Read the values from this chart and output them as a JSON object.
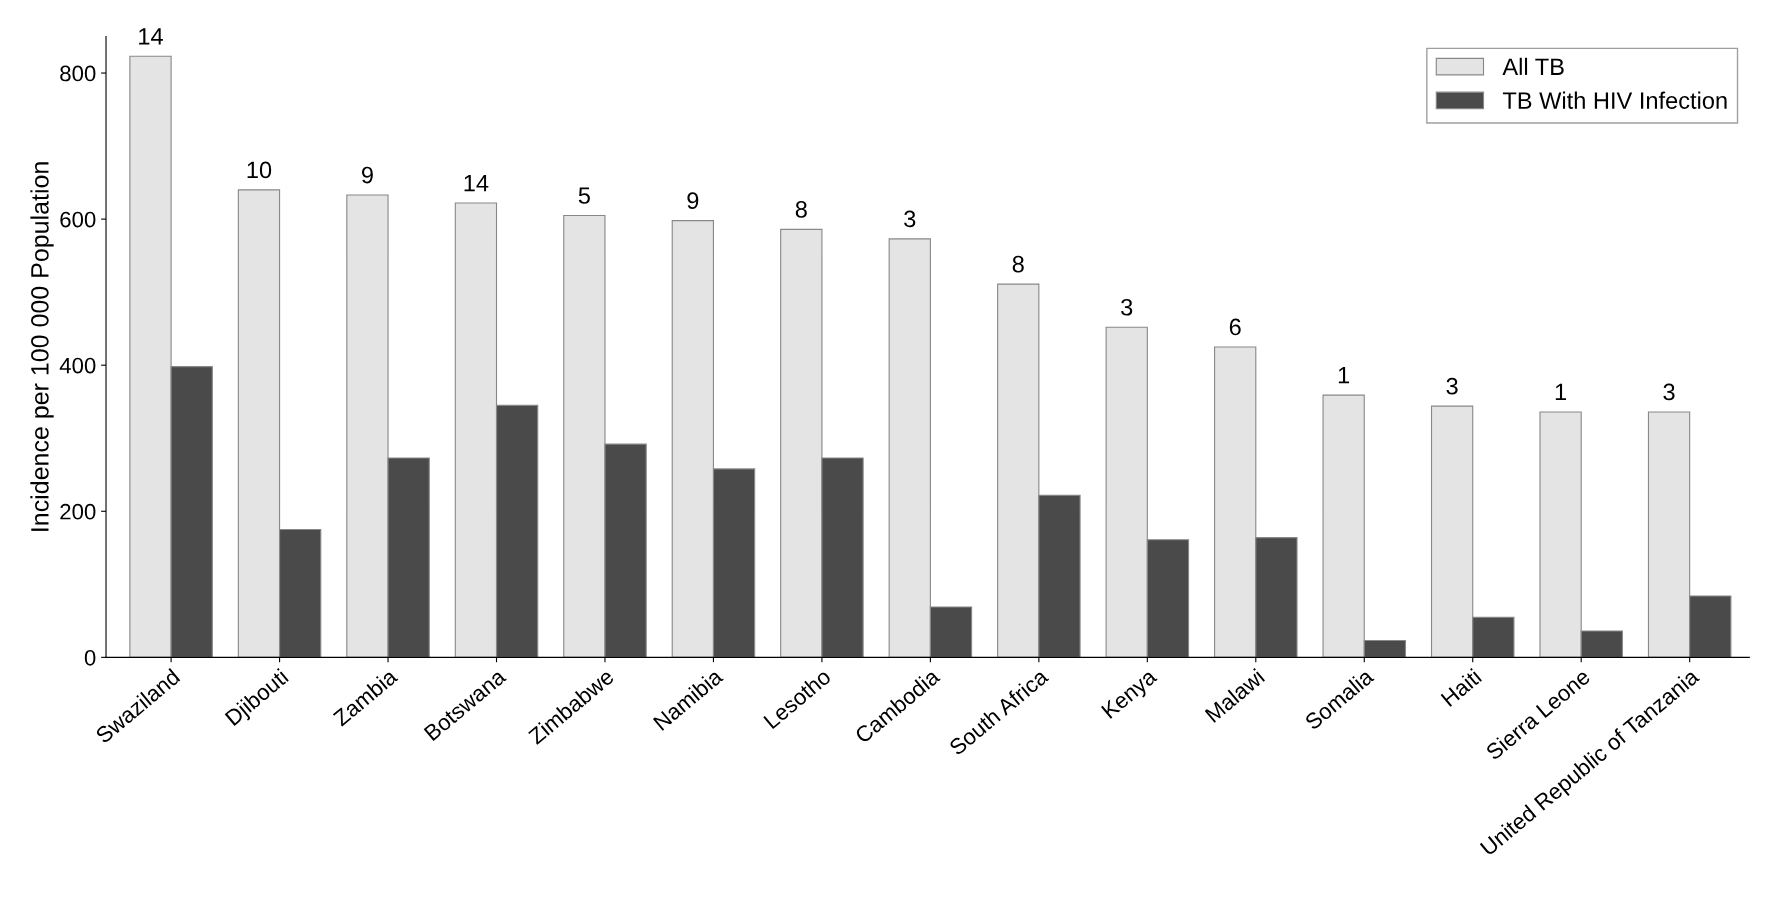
{
  "chart_data": {
    "type": "bar",
    "ylabel": "Incidence per 100 000 Population",
    "categories": [
      "Swaziland",
      "Djibouti",
      "Zambia",
      "Botswana",
      "Zimbabwe",
      "Namibia",
      "Lesotho",
      "Cambodia",
      "South Africa",
      "Kenya",
      "Malawi",
      "Somalia",
      "Haiti",
      "Sierra Leone",
      "United Republic of Tanzania"
    ],
    "series": [
      {
        "name": "All TB",
        "color": "#e4e4e4",
        "values": [
          823,
          640,
          633,
          622,
          605,
          598,
          586,
          573,
          511,
          452,
          425,
          359,
          344,
          336,
          336
        ]
      },
      {
        "name": "TB With HIV Infection",
        "color": "#4a4a4a",
        "values": [
          398,
          175,
          273,
          345,
          292,
          258,
          273,
          69,
          222,
          161,
          164,
          23,
          55,
          36,
          84
        ]
      }
    ],
    "annotations": [
      {
        "text": "14",
        "x": "Swaziland",
        "y": 823
      },
      {
        "text": "10",
        "x": "Djibouti",
        "y": 640
      },
      {
        "text": "9",
        "x": "Zambia",
        "y": 633
      },
      {
        "text": "14",
        "x": "Botswana",
        "y": 622
      },
      {
        "text": "5",
        "x": "Zimbabwe",
        "y": 605
      },
      {
        "text": "9",
        "x": "Namibia",
        "y": 598
      },
      {
        "text": "8",
        "x": "Lesotho",
        "y": 586
      },
      {
        "text": "3",
        "x": "Cambodia",
        "y": 573
      },
      {
        "text": "8",
        "x": "South Africa",
        "y": 511
      },
      {
        "text": "3",
        "x": "Kenya",
        "y": 452
      },
      {
        "text": "6",
        "x": "Malawi",
        "y": 425
      },
      {
        "text": "1",
        "x": "Somalia",
        "y": 359
      },
      {
        "text": "3",
        "x": "Haiti",
        "y": 344
      },
      {
        "text": "1",
        "x": "Sierra Leone",
        "y": 336
      },
      {
        "text": "3",
        "x": "United Republic of Tanzania",
        "y": 336
      }
    ],
    "ylim": [
      0,
      850
    ],
    "yticks": [
      0,
      200,
      400,
      600,
      800
    ],
    "grid": false,
    "legend": "top right"
  }
}
